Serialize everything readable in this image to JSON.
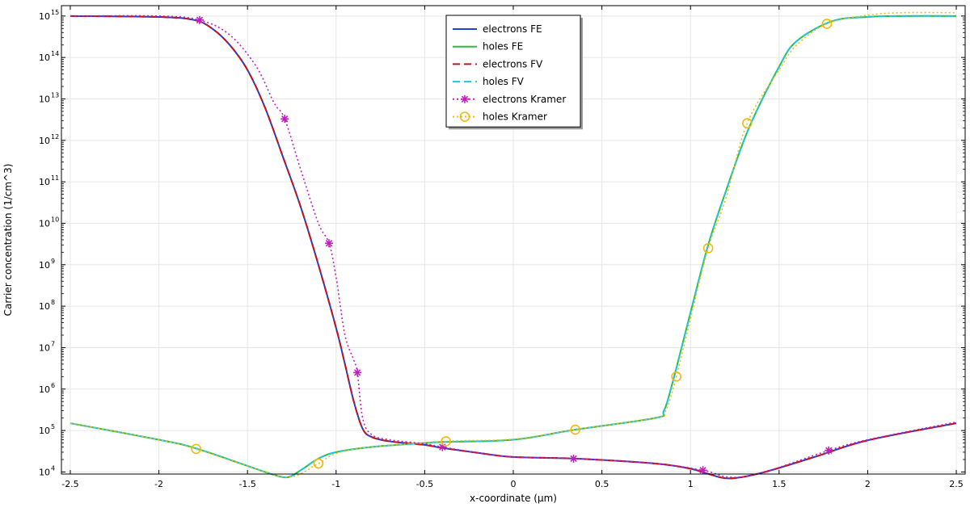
{
  "chart_data": {
    "type": "line",
    "xlabel": "x-coordinate (µm)",
    "ylabel": "Carrier concentration (1/cm^3)",
    "xlim": [
      -2.55,
      2.55
    ],
    "ylim_log10": [
      3.95,
      15.25
    ],
    "y_scale": "log",
    "grid": true,
    "legend_position": "top-center",
    "x_ticks": [
      -2.5,
      -2,
      -1.5,
      -1,
      -0.5,
      0,
      0.5,
      1,
      1.5,
      2,
      2.5
    ],
    "x_tick_labels": [
      "-2.5",
      "-2",
      "-1.5",
      "-1",
      "-0.5",
      "0",
      "0.5",
      "1",
      "1.5",
      "2",
      "2.5"
    ],
    "y_tick_exponents": [
      "4",
      "5",
      "6",
      "7",
      "8",
      "9",
      "10",
      "11",
      "12",
      "13",
      "14",
      "15"
    ],
    "y_tick_base": "10",
    "series": [
      {
        "name": "electrons FE",
        "color": "#1f3fd6",
        "dash": "solid",
        "marker": "none",
        "x": [
          -2.5,
          -2.0,
          -1.8,
          -1.7,
          -1.6,
          -1.5,
          -1.4,
          -1.3,
          -1.2,
          -1.1,
          -1.0,
          -0.95,
          -0.9,
          -0.85,
          -0.8,
          -0.7,
          -0.5,
          -0.4,
          -0.2,
          0.0,
          0.35,
          0.8,
          1.0,
          1.1,
          1.22,
          1.4,
          1.7,
          2.0,
          2.5
        ],
        "y": [
          1000000000000000.0,
          950000000000000.0,
          800000000000000.0,
          500000000000000.0,
          200000000000000.0,
          50000000000000.0,
          6000000000000.0,
          400000000000.0,
          25000000000.0,
          1000000000.0,
          30000000.0,
          4000000.0,
          500000.0,
          110000.0,
          70000.0,
          55000.0,
          45000.0,
          38000.0,
          29000.0,
          23000.0,
          21000.0,
          16000.0,
          12000.0,
          9000.0,
          7000.0,
          9500.0,
          23000.0,
          58000.0,
          150000.0
        ]
      },
      {
        "name": "holes FE",
        "color": "#2ebd3b",
        "dash": "solid",
        "marker": "none",
        "x": [
          -2.5,
          -2.0,
          -1.8,
          -1.5,
          -1.35,
          -1.27,
          -1.2,
          -1.1,
          -1.0,
          -0.8,
          -0.5,
          -0.4,
          0.0,
          0.35,
          0.8,
          0.85,
          0.9,
          1.0,
          1.1,
          1.2,
          1.33,
          1.5,
          1.6,
          1.8,
          2.0,
          2.2,
          2.5
        ],
        "y": [
          150000.0,
          60000.0,
          38000.0,
          14000.0,
          8500.0,
          7500.0,
          11000.0,
          21000.0,
          30000.0,
          40000.0,
          50000.0,
          53000.0,
          60000.0,
          105000.0,
          200000.0,
          300000.0,
          1500000.0,
          70000000.0,
          3000000000.0,
          60000000000.0,
          2000000000000.0,
          60000000000000.0,
          250000000000000.0,
          750000000000000.0,
          950000000000000.0,
          1000000000000000.0,
          1000000000000000.0
        ]
      },
      {
        "name": "electrons FV",
        "color": "#c4141d",
        "dash": "dashed",
        "marker": "none",
        "x": [
          -2.5,
          -2.0,
          -1.8,
          -1.7,
          -1.6,
          -1.5,
          -1.4,
          -1.3,
          -1.2,
          -1.1,
          -1.0,
          -0.95,
          -0.9,
          -0.85,
          -0.8,
          -0.7,
          -0.5,
          -0.4,
          -0.2,
          0.0,
          0.35,
          0.8,
          1.0,
          1.1,
          1.22,
          1.4,
          1.7,
          2.0,
          2.5
        ],
        "y": [
          1000000000000000.0,
          950000000000000.0,
          800000000000000.0,
          500000000000000.0,
          200000000000000.0,
          50000000000000.0,
          6000000000000.0,
          400000000000.0,
          25000000000.0,
          1000000000.0,
          30000000.0,
          4000000.0,
          500000.0,
          110000.0,
          70000.0,
          55000.0,
          45000.0,
          38000.0,
          29000.0,
          23000.0,
          21000.0,
          16000.0,
          12000.0,
          9000.0,
          7000.0,
          9500.0,
          23000.0,
          58000.0,
          150000.0
        ]
      },
      {
        "name": "holes FV",
        "color": "#1cc6d6",
        "dash": "dashed",
        "marker": "none",
        "x": [
          -2.5,
          -2.0,
          -1.8,
          -1.5,
          -1.35,
          -1.27,
          -1.2,
          -1.1,
          -1.0,
          -0.8,
          -0.5,
          -0.4,
          0.0,
          0.35,
          0.8,
          0.85,
          0.9,
          1.0,
          1.1,
          1.2,
          1.33,
          1.5,
          1.6,
          1.8,
          2.0,
          2.2,
          2.5
        ],
        "y": [
          150000.0,
          60000.0,
          38000.0,
          14000.0,
          8500.0,
          7500.0,
          11000.0,
          21000.0,
          30000.0,
          40000.0,
          50000.0,
          53000.0,
          60000.0,
          105000.0,
          200000.0,
          300000.0,
          1500000.0,
          70000000.0,
          3000000000.0,
          60000000000.0,
          2000000000000.0,
          60000000000000.0,
          250000000000000.0,
          750000000000000.0,
          950000000000000.0,
          1000000000000000.0,
          1000000000000000.0
        ]
      },
      {
        "name": "electrons Kramer",
        "color": "#c01fc0",
        "dash": "dotted",
        "marker": "asterisk",
        "x": [
          -2.5,
          -2.0,
          -1.77,
          -1.6,
          -1.45,
          -1.35,
          -1.29,
          -1.2,
          -1.1,
          -1.04,
          -1.0,
          -0.95,
          -0.9,
          -0.88,
          -0.85,
          -0.8,
          -0.7,
          -0.5,
          -0.4,
          -0.2,
          0.0,
          0.34,
          0.8,
          1.07,
          1.22,
          1.4,
          1.78,
          2.0,
          2.5
        ],
        "y": [
          1000000000000000.0,
          1000000000000000.0,
          800000000000000.0,
          350000000000000.0,
          60000000000000.0,
          8000000000000.0,
          3300000000000.0,
          200000000000.0,
          10000000000.0,
          3300000000.0,
          500000000.0,
          20000000.0,
          5000000.0,
          2500000.0,
          200000.0,
          80000.0,
          60000.0,
          48000.0,
          40000.0,
          29000.0,
          23000.0,
          21000.0,
          16000.0,
          11000.0,
          7500.0,
          9500.0,
          33000.0,
          60000.0,
          160000.0
        ],
        "marker_x": [
          -1.77,
          -1.29,
          -1.04,
          -0.88,
          -0.4,
          0.34,
          1.07,
          1.78
        ],
        "marker_y": [
          800000000000000.0,
          3300000000000.0,
          3300000000.0,
          2500000.0,
          40000.0,
          21000.0,
          11000.0,
          33000.0
        ]
      },
      {
        "name": "holes Kramer",
        "color": "#f2b90f",
        "dash": "dotted",
        "marker": "circle",
        "x": [
          -2.5,
          -2.0,
          -1.79,
          -1.5,
          -1.27,
          -1.1,
          -1.0,
          -0.8,
          -0.38,
          0.0,
          0.35,
          0.8,
          0.86,
          0.92,
          1.0,
          1.1,
          1.2,
          1.32,
          1.5,
          1.6,
          1.77,
          2.0,
          2.2,
          2.5
        ],
        "y": [
          150000.0,
          60000.0,
          36000.0,
          14000.0,
          7500.0,
          16000.0,
          28000.0,
          40000.0,
          55000.0,
          62000.0,
          105000.0,
          200000.0,
          300000.0,
          2000000.0,
          50000000.0,
          2500000000.0,
          40000000000.0,
          2600000000000.0,
          50000000000000.0,
          200000000000000.0,
          650000000000000.0,
          1050000000000000.0,
          1200000000000000.0,
          1200000000000000.0
        ],
        "marker_x": [
          -1.79,
          -1.1,
          -0.38,
          0.35,
          0.92,
          1.1,
          1.32,
          1.77
        ],
        "marker_y": [
          36000.0,
          16000.0,
          55000.0,
          105000.0,
          2000000.0,
          2500000000.0,
          2600000000000.0,
          650000000000000.0
        ]
      }
    ]
  }
}
